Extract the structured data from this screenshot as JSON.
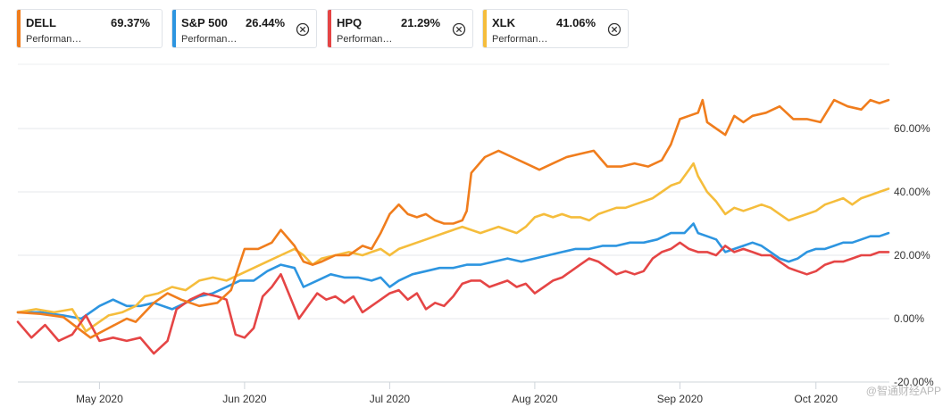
{
  "legend": [
    {
      "ticker": "DELL",
      "pct": "69.37%",
      "desc": "Performan…",
      "color": "#f07d1d",
      "closable": false
    },
    {
      "ticker": "S&P 500",
      "pct": "26.44%",
      "desc": "Performan…",
      "color": "#2d95e0",
      "closable": true
    },
    {
      "ticker": "HPQ",
      "pct": "21.29%",
      "desc": "Performan…",
      "color": "#e54545",
      "closable": true
    },
    {
      "ticker": "XLK",
      "pct": "41.06%",
      "desc": "Performan…",
      "color": "#f5bd3c",
      "closable": true
    }
  ],
  "watermark": "@智通财经APP",
  "chart_data": {
    "type": "line",
    "title": "",
    "xlabel": "",
    "ylabel": "",
    "y_unit": "%",
    "ylim": [
      -20,
      80
    ],
    "yticks": [
      "60.00%",
      "40.00%",
      "20.00%",
      "0.00%",
      "-20.00%"
    ],
    "ytick_values": [
      60,
      40,
      20,
      0,
      -20
    ],
    "xticks": [
      "May 2020",
      "Jun 2020",
      "Jul 2020",
      "Aug 2020",
      "Sep 2020",
      "Oct 2020"
    ],
    "xtick_positions": [
      18,
      50,
      82,
      114,
      146,
      176
    ],
    "grid": "horizontal",
    "y_axis_side": "right",
    "series": [
      {
        "name": "DELL",
        "color": "#f07d1d",
        "points": [
          [
            0,
            2
          ],
          [
            5,
            1.5
          ],
          [
            10,
            0.5
          ],
          [
            16,
            -6
          ],
          [
            20,
            -3
          ],
          [
            24,
            0
          ],
          [
            26,
            -1
          ],
          [
            30,
            5
          ],
          [
            33,
            8
          ],
          [
            36,
            6
          ],
          [
            40,
            4
          ],
          [
            44,
            5
          ],
          [
            47,
            9
          ],
          [
            50,
            22
          ],
          [
            53,
            22
          ],
          [
            56,
            24
          ],
          [
            58,
            28
          ],
          [
            61,
            23
          ],
          [
            63,
            18
          ],
          [
            65,
            17
          ],
          [
            67,
            18
          ],
          [
            70,
            20
          ],
          [
            73,
            20
          ],
          [
            76,
            23
          ],
          [
            78,
            22
          ],
          [
            80,
            27
          ],
          [
            82,
            33
          ],
          [
            84,
            36
          ],
          [
            86,
            33
          ],
          [
            88,
            32
          ],
          [
            90,
            33
          ],
          [
            92,
            31
          ],
          [
            94,
            30
          ],
          [
            96,
            30
          ],
          [
            98,
            31
          ],
          [
            99,
            34
          ],
          [
            100,
            46
          ],
          [
            103,
            51
          ],
          [
            106,
            53
          ],
          [
            109,
            51
          ],
          [
            112,
            49
          ],
          [
            115,
            47
          ],
          [
            118,
            49
          ],
          [
            121,
            51
          ],
          [
            124,
            52
          ],
          [
            127,
            53
          ],
          [
            130,
            48
          ],
          [
            133,
            48
          ],
          [
            136,
            49
          ],
          [
            139,
            48
          ],
          [
            142,
            50
          ],
          [
            144,
            55
          ],
          [
            146,
            63
          ],
          [
            148,
            64
          ],
          [
            150,
            65
          ],
          [
            151,
            69
          ],
          [
            152,
            62
          ],
          [
            154,
            60
          ],
          [
            156,
            58
          ],
          [
            158,
            64
          ],
          [
            160,
            62
          ],
          [
            162,
            64
          ],
          [
            165,
            65
          ],
          [
            168,
            67
          ],
          [
            171,
            63
          ],
          [
            174,
            63
          ],
          [
            177,
            62
          ],
          [
            180,
            69
          ],
          [
            183,
            67
          ],
          [
            186,
            66
          ],
          [
            188,
            69
          ],
          [
            190,
            68
          ],
          [
            192,
            69
          ]
        ]
      },
      {
        "name": "S&P 500",
        "color": "#2d95e0",
        "points": [
          [
            0,
            2
          ],
          [
            5,
            2
          ],
          [
            10,
            1
          ],
          [
            14,
            0
          ],
          [
            18,
            4
          ],
          [
            21,
            6
          ],
          [
            24,
            4
          ],
          [
            27,
            4
          ],
          [
            30,
            5
          ],
          [
            34,
            3
          ],
          [
            37,
            5
          ],
          [
            40,
            7
          ],
          [
            43,
            8
          ],
          [
            46,
            10
          ],
          [
            49,
            12
          ],
          [
            52,
            12
          ],
          [
            55,
            15
          ],
          [
            58,
            17
          ],
          [
            61,
            16
          ],
          [
            63,
            10
          ],
          [
            66,
            12
          ],
          [
            69,
            14
          ],
          [
            72,
            13
          ],
          [
            75,
            13
          ],
          [
            78,
            12
          ],
          [
            80,
            13
          ],
          [
            82,
            10
          ],
          [
            84,
            12
          ],
          [
            87,
            14
          ],
          [
            90,
            15
          ],
          [
            93,
            16
          ],
          [
            96,
            16
          ],
          [
            99,
            17
          ],
          [
            102,
            17
          ],
          [
            105,
            18
          ],
          [
            108,
            19
          ],
          [
            111,
            18
          ],
          [
            114,
            19
          ],
          [
            117,
            20
          ],
          [
            120,
            21
          ],
          [
            123,
            22
          ],
          [
            126,
            22
          ],
          [
            129,
            23
          ],
          [
            132,
            23
          ],
          [
            135,
            24
          ],
          [
            138,
            24
          ],
          [
            141,
            25
          ],
          [
            144,
            27
          ],
          [
            147,
            27
          ],
          [
            149,
            30
          ],
          [
            150,
            27
          ],
          [
            152,
            26
          ],
          [
            154,
            25
          ],
          [
            156,
            21
          ],
          [
            158,
            22
          ],
          [
            160,
            23
          ],
          [
            162,
            24
          ],
          [
            164,
            23
          ],
          [
            166,
            21
          ],
          [
            168,
            19
          ],
          [
            170,
            18
          ],
          [
            172,
            19
          ],
          [
            174,
            21
          ],
          [
            176,
            22
          ],
          [
            178,
            22
          ],
          [
            180,
            23
          ],
          [
            182,
            24
          ],
          [
            184,
            24
          ],
          [
            186,
            25
          ],
          [
            188,
            26
          ],
          [
            190,
            26
          ],
          [
            192,
            27
          ]
        ]
      },
      {
        "name": "HPQ",
        "color": "#e54545",
        "points": [
          [
            0,
            -1
          ],
          [
            3,
            -6
          ],
          [
            6,
            -2
          ],
          [
            9,
            -7
          ],
          [
            12,
            -5
          ],
          [
            15,
            1
          ],
          [
            18,
            -7
          ],
          [
            21,
            -6
          ],
          [
            24,
            -7
          ],
          [
            27,
            -6
          ],
          [
            30,
            -11
          ],
          [
            33,
            -7
          ],
          [
            35,
            3
          ],
          [
            38,
            6
          ],
          [
            41,
            8
          ],
          [
            44,
            7
          ],
          [
            46,
            6
          ],
          [
            48,
            -5
          ],
          [
            50,
            -6
          ],
          [
            52,
            -3
          ],
          [
            54,
            7
          ],
          [
            56,
            10
          ],
          [
            58,
            14
          ],
          [
            60,
            7
          ],
          [
            62,
            0
          ],
          [
            64,
            4
          ],
          [
            66,
            8
          ],
          [
            68,
            6
          ],
          [
            70,
            7
          ],
          [
            72,
            5
          ],
          [
            74,
            7
          ],
          [
            76,
            2
          ],
          [
            78,
            4
          ],
          [
            80,
            6
          ],
          [
            82,
            8
          ],
          [
            84,
            9
          ],
          [
            86,
            6
          ],
          [
            88,
            8
          ],
          [
            90,
            3
          ],
          [
            92,
            5
          ],
          [
            94,
            4
          ],
          [
            96,
            7
          ],
          [
            98,
            11
          ],
          [
            100,
            12
          ],
          [
            102,
            12
          ],
          [
            104,
            10
          ],
          [
            106,
            11
          ],
          [
            108,
            12
          ],
          [
            110,
            10
          ],
          [
            112,
            11
          ],
          [
            114,
            8
          ],
          [
            116,
            10
          ],
          [
            118,
            12
          ],
          [
            120,
            13
          ],
          [
            122,
            15
          ],
          [
            124,
            17
          ],
          [
            126,
            19
          ],
          [
            128,
            18
          ],
          [
            130,
            16
          ],
          [
            132,
            14
          ],
          [
            134,
            15
          ],
          [
            136,
            14
          ],
          [
            138,
            15
          ],
          [
            140,
            19
          ],
          [
            142,
            21
          ],
          [
            144,
            22
          ],
          [
            146,
            24
          ],
          [
            148,
            22
          ],
          [
            150,
            21
          ],
          [
            152,
            21
          ],
          [
            154,
            20
          ],
          [
            156,
            23
          ],
          [
            158,
            21
          ],
          [
            160,
            22
          ],
          [
            162,
            21
          ],
          [
            164,
            20
          ],
          [
            166,
            20
          ],
          [
            168,
            18
          ],
          [
            170,
            16
          ],
          [
            172,
            15
          ],
          [
            174,
            14
          ],
          [
            176,
            15
          ],
          [
            178,
            17
          ],
          [
            180,
            18
          ],
          [
            182,
            18
          ],
          [
            184,
            19
          ],
          [
            186,
            20
          ],
          [
            188,
            20
          ],
          [
            190,
            21
          ],
          [
            192,
            21
          ]
        ]
      },
      {
        "name": "XLK",
        "color": "#f5bd3c",
        "points": [
          [
            0,
            2
          ],
          [
            4,
            3
          ],
          [
            8,
            2
          ],
          [
            12,
            3
          ],
          [
            15,
            -4
          ],
          [
            17,
            -2
          ],
          [
            20,
            1
          ],
          [
            23,
            2
          ],
          [
            26,
            4
          ],
          [
            28,
            7
          ],
          [
            31,
            8
          ],
          [
            34,
            10
          ],
          [
            37,
            9
          ],
          [
            40,
            12
          ],
          [
            43,
            13
          ],
          [
            46,
            12
          ],
          [
            49,
            14
          ],
          [
            52,
            16
          ],
          [
            55,
            18
          ],
          [
            58,
            20
          ],
          [
            61,
            22
          ],
          [
            63,
            20
          ],
          [
            65,
            17
          ],
          [
            67,
            19
          ],
          [
            70,
            20
          ],
          [
            73,
            21
          ],
          [
            76,
            20
          ],
          [
            78,
            21
          ],
          [
            80,
            22
          ],
          [
            82,
            20
          ],
          [
            84,
            22
          ],
          [
            86,
            23
          ],
          [
            88,
            24
          ],
          [
            90,
            25
          ],
          [
            92,
            26
          ],
          [
            94,
            27
          ],
          [
            96,
            28
          ],
          [
            98,
            29
          ],
          [
            100,
            28
          ],
          [
            102,
            27
          ],
          [
            104,
            28
          ],
          [
            106,
            29
          ],
          [
            108,
            28
          ],
          [
            110,
            27
          ],
          [
            112,
            29
          ],
          [
            114,
            32
          ],
          [
            116,
            33
          ],
          [
            118,
            32
          ],
          [
            120,
            33
          ],
          [
            122,
            32
          ],
          [
            124,
            32
          ],
          [
            126,
            31
          ],
          [
            128,
            33
          ],
          [
            130,
            34
          ],
          [
            132,
            35
          ],
          [
            134,
            35
          ],
          [
            136,
            36
          ],
          [
            138,
            37
          ],
          [
            140,
            38
          ],
          [
            142,
            40
          ],
          [
            144,
            42
          ],
          [
            146,
            43
          ],
          [
            148,
            47
          ],
          [
            149,
            49
          ],
          [
            150,
            45
          ],
          [
            152,
            40
          ],
          [
            154,
            37
          ],
          [
            156,
            33
          ],
          [
            158,
            35
          ],
          [
            160,
            34
          ],
          [
            162,
            35
          ],
          [
            164,
            36
          ],
          [
            166,
            35
          ],
          [
            168,
            33
          ],
          [
            170,
            31
          ],
          [
            172,
            32
          ],
          [
            174,
            33
          ],
          [
            176,
            34
          ],
          [
            178,
            36
          ],
          [
            180,
            37
          ],
          [
            182,
            38
          ],
          [
            184,
            36
          ],
          [
            186,
            38
          ],
          [
            188,
            39
          ],
          [
            190,
            40
          ],
          [
            192,
            41
          ]
        ]
      }
    ]
  }
}
